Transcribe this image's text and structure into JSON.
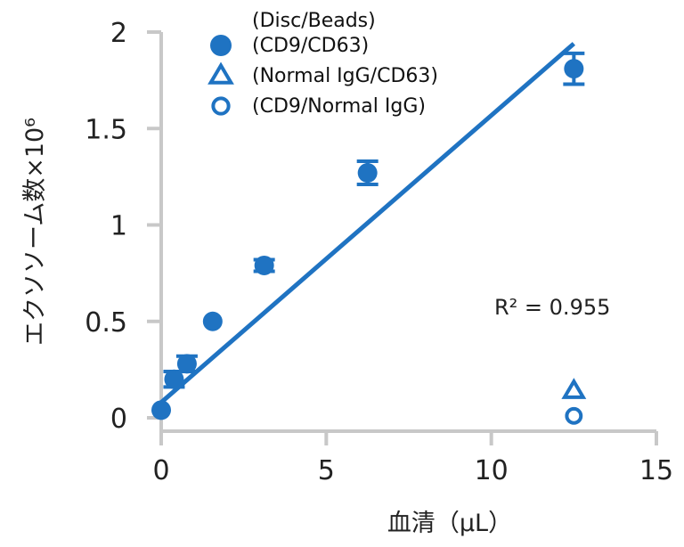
{
  "chart_data": {
    "type": "scatter",
    "xlabel": "血清（μL）",
    "ylabel": "エクソソーム数×10⁶",
    "xlim": [
      0,
      15
    ],
    "ylim": [
      0,
      2
    ],
    "x_ticks": [
      "0",
      "5",
      "10",
      "15"
    ],
    "y_ticks": [
      "0",
      "0.5",
      "1",
      "1.5",
      "2"
    ],
    "legend_title": "(Disc/Beads)",
    "legend_position": "top-left",
    "grid": false,
    "color": "#1f73c2",
    "series": [
      {
        "name": "(CD9/CD63)",
        "marker": "filled-circle",
        "points": [
          {
            "x": 0,
            "y": 0.04,
            "err": 0
          },
          {
            "x": 0.39,
            "y": 0.2,
            "err": 0.04
          },
          {
            "x": 0.78,
            "y": 0.28,
            "err": 0.04
          },
          {
            "x": 1.56,
            "y": 0.5,
            "err": 0
          },
          {
            "x": 3.12,
            "y": 0.79,
            "err": 0.03
          },
          {
            "x": 6.25,
            "y": 1.27,
            "err": 0.06
          },
          {
            "x": 12.5,
            "y": 1.81,
            "err": 0.08
          }
        ]
      },
      {
        "name": "(Normal IgG/CD63)",
        "marker": "open-triangle",
        "points": [
          {
            "x": 12.5,
            "y": 0.14,
            "err": 0
          }
        ]
      },
      {
        "name": "(CD9/Normal IgG)",
        "marker": "open-circle",
        "points": [
          {
            "x": 12.5,
            "y": 0.01,
            "err": 0
          }
        ]
      }
    ],
    "trendline": {
      "x": [
        0,
        12.5
      ],
      "y": [
        0.08,
        1.94
      ]
    },
    "annotation": "R² = 0.955"
  }
}
